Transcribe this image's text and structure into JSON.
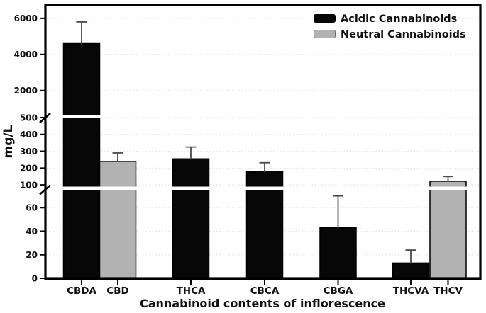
{
  "chart_data": {
    "type": "bar",
    "title": "",
    "xlabel": "Cannabinoid contents of inflorescence",
    "ylabel": "mg/L",
    "legend_position": "top-right",
    "grid": "horizontal dotted",
    "colors": {
      "acidic": "#070707",
      "neutral": "#b2b2b2",
      "error_bar": "#4a4a4a",
      "gridline": "#e2e2e2",
      "frame": "#000000"
    },
    "legend": [
      {
        "label": "Acidic Cannabinoids",
        "key": "acidic",
        "color": "#070707"
      },
      {
        "label": "Neutral Cannabinoids",
        "key": "neutral",
        "color": "#b2b2b2"
      }
    ],
    "y_axis": {
      "label": "mg/L",
      "broken": true,
      "break_count": 2,
      "segments": [
        {
          "ticks": [
            0,
            20,
            40,
            60
          ],
          "domain": [
            0,
            74
          ]
        },
        {
          "ticks": [
            100,
            200,
            300,
            400,
            500
          ],
          "domain": [
            88,
            500
          ]
        },
        {
          "ticks": [
            2000,
            4000,
            6000
          ],
          "domain": [
            500,
            6700
          ]
        }
      ]
    },
    "categories": [
      "CBDA",
      "CBD",
      "THCA",
      "CBCA",
      "CBGA",
      "THCVA",
      "THCV"
    ],
    "bars": [
      {
        "label": "CBDA",
        "series": "acidic",
        "value": 4600,
        "error_up": 1200
      },
      {
        "label": "CBD",
        "series": "neutral",
        "value": 240,
        "error_up": 50
      },
      {
        "label": "THCA",
        "series": "acidic",
        "value": 255,
        "error_up": 70
      },
      {
        "label": "CBCA",
        "series": "acidic",
        "value": 178,
        "error_up": 54
      },
      {
        "label": "CBGA",
        "series": "acidic",
        "value": 43,
        "error_up": 27
      },
      {
        "label": "THCVA",
        "series": "acidic",
        "value": 13,
        "error_up": 11
      },
      {
        "label": "THCV",
        "series": "neutral",
        "value": 122,
        "error_up": 28
      }
    ]
  }
}
